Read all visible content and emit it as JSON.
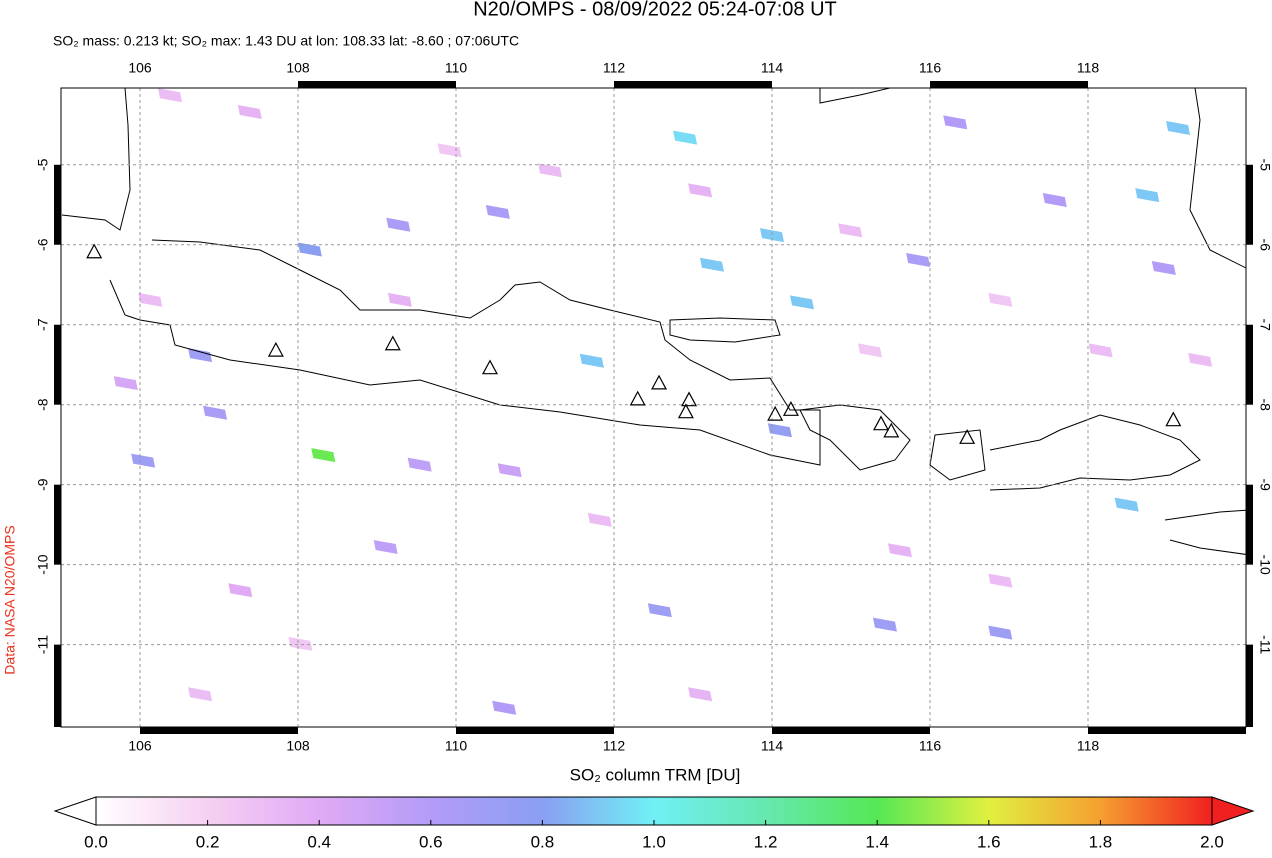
{
  "chart_data": {
    "type": "map",
    "title": "N20/OMPS - 08/09/2022 05:24-07:08 UT",
    "subtitle": "SO₂ mass: 0.213 kt; SO₂ max: 1.43 DU at lon: 108.33 lat: -8.60 ; 07:06UTC",
    "source_label": "Data: NASA N20/OMPS",
    "colorbar_label": "SO₂ column TRM [DU]",
    "xlim": [
      105,
      120
    ],
    "xticks": [
      106,
      108,
      110,
      112,
      114,
      116,
      118
    ],
    "ylim": [
      -12.03,
      -4.04
    ],
    "yticks": [
      -5,
      -6,
      -7,
      -8,
      -9,
      -10,
      -11
    ],
    "grid": true,
    "colorbar_lim": [
      0,
      2
    ],
    "colorbar_ticks": [
      {
        "value": 0,
        "label": "0.0"
      },
      0.2,
      0.4,
      0.6,
      0.8,
      {
        "value": 1,
        "label": "1.0"
      },
      1.2,
      1.4,
      1.6,
      1.8,
      {
        "value": 2,
        "label": "2.0"
      }
    ],
    "colorscale": [
      "#ffffff",
      "#f6d0f2",
      "#e0aaf5",
      "#b39cf7",
      "#8a9ff2",
      "#70f0f5",
      "#66e8b0",
      "#55e855",
      "#e0f040",
      "#f5a030",
      "#f02020"
    ],
    "volcanoes": {
      "lon": [
        105.42,
        107.72,
        109.2,
        110.43,
        112.3,
        112.57,
        112.95,
        112.91,
        114.04,
        114.24,
        115.38,
        115.51,
        116.47,
        119.08
      ],
      "lat": [
        -6.1,
        -7.33,
        -7.25,
        -7.55,
        -7.94,
        -7.74,
        -7.95,
        -8.1,
        -8.13,
        -8.07,
        -8.25,
        -8.34,
        -8.42,
        -8.2
      ]
    },
    "pixels": {
      "lon": [
        108.32,
        112.9,
        113.24,
        114.0,
        114.38,
        111.72,
        108.15,
        119.14,
        118.75,
        118.49,
        106.04,
        109.27,
        110.53,
        110.61,
        106.76,
        115.43,
        116.89,
        112.58,
        106.95,
        114.1,
        109.11,
        109.54,
        110.68,
        116.32,
        118.96,
        117.58,
        115.85,
        107.27,
        105.82,
        106.38,
        107.39,
        109.92,
        111.19,
        113.09,
        114.99,
        116.89,
        118.16,
        115.62,
        111.82,
        108.03,
        106.76,
        113.09,
        116.89,
        119.42,
        109.29,
        106.13,
        115.24
      ],
      "lat": [
        -8.63,
        -4.66,
        -6.25,
        -5.88,
        -6.72,
        -7.45,
        -6.06,
        -4.54,
        -5.38,
        -9.25,
        -8.7,
        -5.75,
        -5.59,
        -11.79,
        -7.38,
        -10.75,
        -10.85,
        -10.57,
        -8.1,
        -8.32,
        -9.78,
        -8.75,
        -8.82,
        -4.47,
        -6.29,
        -5.44,
        -6.19,
        -10.32,
        -7.73,
        -4.13,
        -4.34,
        -4.82,
        -5.07,
        -5.32,
        -5.82,
        -6.69,
        -7.32,
        -9.82,
        -9.44,
        -10.99,
        -11.62,
        -11.62,
        -10.2,
        -7.44,
        -6.69,
        -6.69,
        -7.32
      ],
      "values": [
        1.43,
        0.95,
        0.9,
        0.9,
        0.9,
        0.9,
        0.8,
        0.9,
        0.9,
        0.9,
        0.7,
        0.65,
        0.65,
        0.6,
        0.7,
        0.7,
        0.7,
        0.7,
        0.65,
        0.75,
        0.55,
        0.55,
        0.5,
        0.6,
        0.6,
        0.6,
        0.65,
        0.4,
        0.45,
        0.3,
        0.35,
        0.25,
        0.3,
        0.35,
        0.3,
        0.25,
        0.3,
        0.35,
        0.3,
        0.25,
        0.3,
        0.35,
        0.3,
        0.3,
        0.35,
        0.3,
        0.25
      ]
    }
  }
}
